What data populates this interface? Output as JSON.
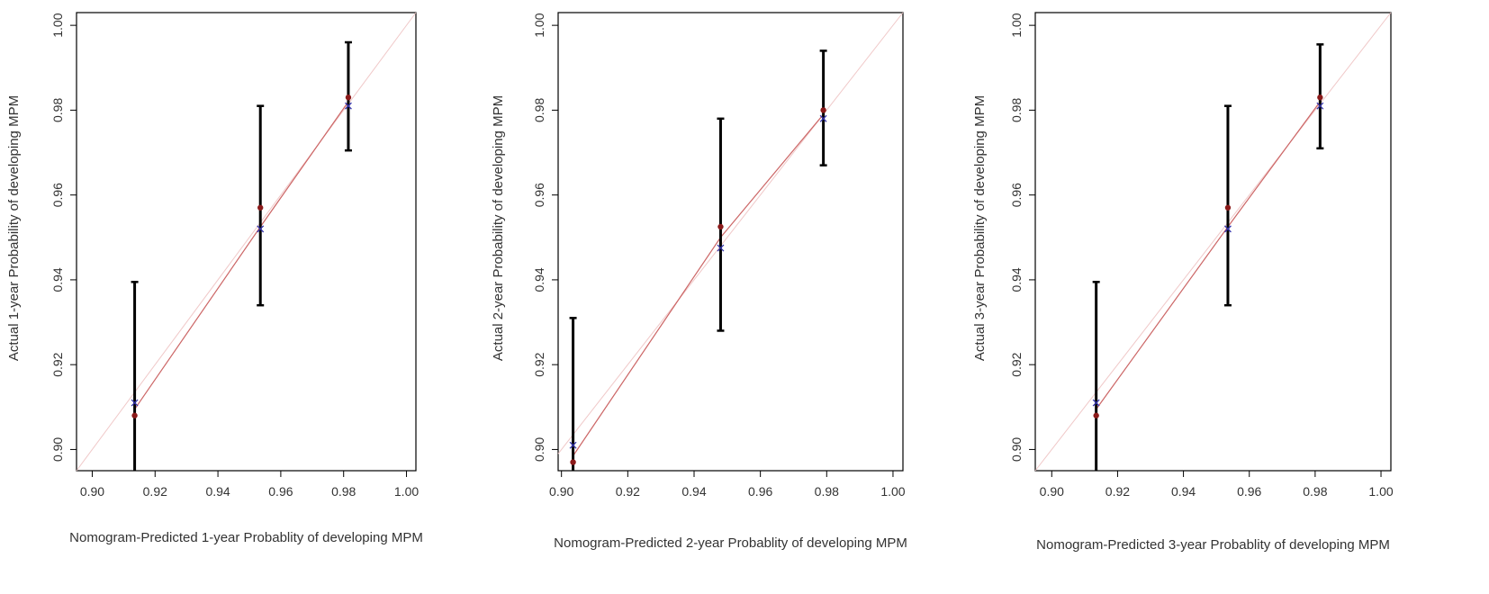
{
  "chart_data": [
    {
      "type": "scatter",
      "xlabel": "Nomogram-Predicted 1-year Probablity of developing MPM",
      "ylabel": "Actual 1-year Probability of developing MPM",
      "xlim": [
        0.895,
        1.003
      ],
      "ylim": [
        0.895,
        1.003
      ],
      "x_ticks": [
        "0.90",
        "0.92",
        "0.94",
        "0.96",
        "0.98",
        "1.00"
      ],
      "y_ticks": [
        "0.90",
        "0.92",
        "0.94",
        "0.96",
        "0.98",
        "1.00"
      ],
      "grid": false,
      "reference_line": "ideal diagonal (y = x)",
      "calibration_line": {
        "x": [
          0.9135,
          0.9535,
          0.9815
        ],
        "y": [
          0.9095,
          0.9525,
          0.982
        ]
      },
      "points": [
        {
          "x": 0.9135,
          "observed": 0.908,
          "lower": 0.895,
          "upper": 0.9395,
          "corrected": 0.911
        },
        {
          "x": 0.9535,
          "observed": 0.957,
          "lower": 0.934,
          "upper": 0.981,
          "corrected": 0.952
        },
        {
          "x": 0.9815,
          "observed": 0.983,
          "lower": 0.9705,
          "upper": 0.996,
          "corrected": 0.981
        }
      ],
      "colors": {
        "observed": "#8b1a1a",
        "corrected": "#3333aa",
        "errorbar": "#000000",
        "calibration_line": "#cc6666",
        "reference_line": "#f0c8c8"
      }
    },
    {
      "type": "scatter",
      "xlabel": "Nomogram-Predicted 2-year Probablity of developing MPM",
      "ylabel": "Actual 2-year Probability of developing MPM",
      "xlim": [
        0.899,
        1.003
      ],
      "ylim": [
        0.895,
        1.003
      ],
      "x_ticks": [
        "0.90",
        "0.92",
        "0.94",
        "0.96",
        "0.98",
        "1.00"
      ],
      "y_ticks": [
        "0.90",
        "0.92",
        "0.94",
        "0.96",
        "0.98",
        "1.00"
      ],
      "grid": false,
      "reference_line": "ideal diagonal (y = x)",
      "calibration_line": {
        "x": [
          0.9035,
          0.948,
          0.979
        ],
        "y": [
          0.8985,
          0.95,
          0.979
        ]
      },
      "points": [
        {
          "x": 0.9035,
          "observed": 0.897,
          "lower": 0.895,
          "upper": 0.931,
          "corrected": 0.901
        },
        {
          "x": 0.948,
          "observed": 0.9525,
          "lower": 0.928,
          "upper": 0.978,
          "corrected": 0.9475
        },
        {
          "x": 0.979,
          "observed": 0.98,
          "lower": 0.967,
          "upper": 0.994,
          "corrected": 0.978
        }
      ],
      "colors": {
        "observed": "#8b1a1a",
        "corrected": "#3333aa",
        "errorbar": "#000000",
        "calibration_line": "#cc6666",
        "reference_line": "#f0c8c8"
      }
    },
    {
      "type": "scatter",
      "xlabel": "Nomogram-Predicted 3-year Probablity of developing MPM",
      "ylabel": "Actual 3-year Probability of developing MPM",
      "xlim": [
        0.895,
        1.003
      ],
      "ylim": [
        0.895,
        1.003
      ],
      "x_ticks": [
        "0.90",
        "0.92",
        "0.94",
        "0.96",
        "0.98",
        "1.00"
      ],
      "y_ticks": [
        "0.90",
        "0.92",
        "0.94",
        "0.96",
        "0.98",
        "1.00"
      ],
      "grid": false,
      "reference_line": "ideal diagonal (y = x)",
      "calibration_line": {
        "x": [
          0.9135,
          0.9535,
          0.9815
        ],
        "y": [
          0.9095,
          0.9525,
          0.982
        ]
      },
      "points": [
        {
          "x": 0.9135,
          "observed": 0.908,
          "lower": 0.895,
          "upper": 0.9395,
          "corrected": 0.911
        },
        {
          "x": 0.9535,
          "observed": 0.957,
          "lower": 0.934,
          "upper": 0.981,
          "corrected": 0.952
        },
        {
          "x": 0.9815,
          "observed": 0.983,
          "lower": 0.971,
          "upper": 0.9955,
          "corrected": 0.981
        }
      ],
      "colors": {
        "observed": "#8b1a1a",
        "corrected": "#3333aa",
        "errorbar": "#000000",
        "calibration_line": "#cc6666",
        "reference_line": "#f0c8c8"
      }
    }
  ]
}
